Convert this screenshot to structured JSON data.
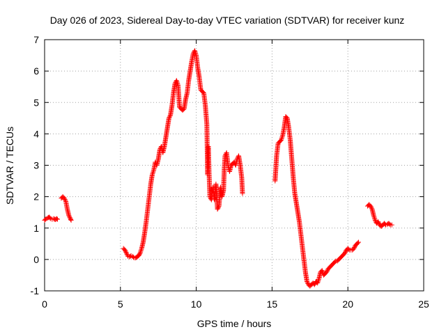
{
  "chart_data": {
    "type": "scatter",
    "title": "Day 026 of 2023, Sidereal Day-to-day VTEC variation (SDTVAR) for receiver kunz",
    "xlabel": "GPS time / hours",
    "ylabel": "SDTVAR / TECUs",
    "xlim": [
      0,
      25
    ],
    "ylim": [
      -1,
      7
    ],
    "xticks": [
      "0",
      "5",
      "10",
      "15",
      "20",
      "25"
    ],
    "yticks": [
      "-1",
      "0",
      "1",
      "2",
      "3",
      "4",
      "5",
      "6",
      "7"
    ],
    "grid": true,
    "marker": "plus",
    "color": "#ff0000",
    "segments": [
      [
        [
          0.0,
          1.25
        ],
        [
          0.1,
          1.3
        ],
        [
          0.2,
          1.32
        ],
        [
          0.3,
          1.35
        ],
        [
          0.4,
          1.3
        ],
        [
          0.5,
          1.28
        ],
        [
          0.6,
          1.3
        ],
        [
          0.7,
          1.27
        ],
        [
          0.8,
          1.3
        ],
        [
          0.85,
          1.28
        ]
      ],
      [
        [
          1.1,
          1.95
        ],
        [
          1.2,
          2.0
        ],
        [
          1.3,
          1.95
        ],
        [
          1.4,
          1.85
        ],
        [
          1.5,
          1.6
        ],
        [
          1.6,
          1.4
        ],
        [
          1.7,
          1.3
        ],
        [
          1.75,
          1.25
        ]
      ],
      [
        [
          5.2,
          0.35
        ],
        [
          5.3,
          0.3
        ],
        [
          5.4,
          0.2
        ],
        [
          5.5,
          0.1
        ],
        [
          5.6,
          0.08
        ],
        [
          5.7,
          0.12
        ],
        [
          5.8,
          0.1
        ],
        [
          5.9,
          0.05
        ],
        [
          6.0,
          0.05
        ],
        [
          6.1,
          0.08
        ],
        [
          6.2,
          0.12
        ],
        [
          6.3,
          0.2
        ],
        [
          6.4,
          0.35
        ],
        [
          6.5,
          0.55
        ],
        [
          6.6,
          0.85
        ],
        [
          6.7,
          1.2
        ],
        [
          6.8,
          1.6
        ],
        [
          6.9,
          2.0
        ],
        [
          7.0,
          2.4
        ],
        [
          7.1,
          2.7
        ],
        [
          7.2,
          2.85
        ],
        [
          7.3,
          3.1
        ],
        [
          7.4,
          3.0
        ],
        [
          7.5,
          3.2
        ],
        [
          7.6,
          3.5
        ],
        [
          7.7,
          3.6
        ],
        [
          7.8,
          3.4
        ],
        [
          7.9,
          3.6
        ],
        [
          8.0,
          3.9
        ],
        [
          8.1,
          4.2
        ],
        [
          8.2,
          4.5
        ],
        [
          8.3,
          4.6
        ],
        [
          8.4,
          4.9
        ],
        [
          8.5,
          5.3
        ],
        [
          8.6,
          5.6
        ],
        [
          8.7,
          5.7
        ],
        [
          8.8,
          5.55
        ],
        [
          8.9,
          4.85
        ],
        [
          9.0,
          4.8
        ],
        [
          9.1,
          4.75
        ],
        [
          9.2,
          4.8
        ],
        [
          9.3,
          5.1
        ],
        [
          9.4,
          5.3
        ],
        [
          9.5,
          5.7
        ],
        [
          9.6,
          6.0
        ],
        [
          9.7,
          6.3
        ],
        [
          9.8,
          6.55
        ],
        [
          9.9,
          6.65
        ],
        [
          10.0,
          6.5
        ],
        [
          10.1,
          6.1
        ],
        [
          10.2,
          5.8
        ],
        [
          10.3,
          5.4
        ],
        [
          10.4,
          5.35
        ],
        [
          10.5,
          5.3
        ],
        [
          10.6,
          4.9
        ],
        [
          10.7,
          4.3
        ],
        [
          10.75,
          2.7
        ],
        [
          10.8,
          3.6
        ],
        [
          10.85,
          2.7
        ],
        [
          10.9,
          2.0
        ],
        [
          11.0,
          1.9
        ],
        [
          11.1,
          2.3
        ],
        [
          11.2,
          1.9
        ],
        [
          11.3,
          2.4
        ],
        [
          11.4,
          1.6
        ],
        [
          11.5,
          1.7
        ],
        [
          11.6,
          2.3
        ],
        [
          11.7,
          2.0
        ],
        [
          11.8,
          2.2
        ],
        [
          11.85,
          2.9
        ],
        [
          11.9,
          3.3
        ],
        [
          12.0,
          3.4
        ],
        [
          12.1,
          3.0
        ],
        [
          12.2,
          2.8
        ],
        [
          12.3,
          3.0
        ],
        [
          12.4,
          3.05
        ],
        [
          12.5,
          3.1
        ],
        [
          12.6,
          3.0
        ],
        [
          12.7,
          3.2
        ],
        [
          12.8,
          3.3
        ],
        [
          12.9,
          3.0
        ],
        [
          13.0,
          2.6
        ],
        [
          13.05,
          2.1
        ]
      ],
      [
        [
          15.2,
          2.5
        ],
        [
          15.3,
          3.3
        ],
        [
          15.4,
          3.7
        ],
        [
          15.5,
          3.75
        ],
        [
          15.6,
          3.8
        ],
        [
          15.7,
          3.95
        ],
        [
          15.8,
          4.2
        ],
        [
          15.9,
          4.55
        ],
        [
          16.0,
          4.5
        ],
        [
          16.1,
          4.2
        ],
        [
          16.2,
          3.8
        ],
        [
          16.3,
          3.2
        ],
        [
          16.4,
          2.6
        ],
        [
          16.5,
          2.1
        ],
        [
          16.6,
          1.8
        ],
        [
          16.7,
          1.5
        ],
        [
          16.8,
          1.2
        ],
        [
          16.9,
          0.8
        ],
        [
          17.0,
          0.4
        ],
        [
          17.1,
          0.0
        ],
        [
          17.2,
          -0.4
        ],
        [
          17.3,
          -0.7
        ],
        [
          17.4,
          -0.8
        ],
        [
          17.5,
          -0.85
        ],
        [
          17.6,
          -0.8
        ],
        [
          17.7,
          -0.75
        ],
        [
          17.8,
          -0.8
        ],
        [
          17.9,
          -0.7
        ],
        [
          18.0,
          -0.75
        ],
        [
          18.1,
          -0.6
        ],
        [
          18.2,
          -0.4
        ],
        [
          18.3,
          -0.35
        ],
        [
          18.4,
          -0.5
        ],
        [
          18.5,
          -0.45
        ],
        [
          18.6,
          -0.4
        ],
        [
          18.7,
          -0.3
        ],
        [
          18.8,
          -0.25
        ],
        [
          18.9,
          -0.2
        ],
        [
          19.0,
          -0.15
        ],
        [
          19.1,
          -0.1
        ],
        [
          19.2,
          -0.05
        ],
        [
          19.3,
          -0.05
        ],
        [
          19.4,
          0.0
        ],
        [
          19.5,
          0.05
        ],
        [
          19.6,
          0.1
        ],
        [
          19.7,
          0.15
        ],
        [
          19.8,
          0.2
        ],
        [
          19.9,
          0.3
        ],
        [
          20.0,
          0.35
        ],
        [
          20.1,
          0.3
        ],
        [
          20.2,
          0.3
        ],
        [
          20.3,
          0.3
        ],
        [
          20.4,
          0.35
        ],
        [
          20.5,
          0.45
        ],
        [
          20.6,
          0.5
        ],
        [
          20.7,
          0.55
        ]
      ],
      [
        [
          21.3,
          1.7
        ],
        [
          21.4,
          1.75
        ],
        [
          21.5,
          1.7
        ],
        [
          21.6,
          1.6
        ],
        [
          21.7,
          1.4
        ],
        [
          21.8,
          1.25
        ],
        [
          21.9,
          1.15
        ],
        [
          22.0,
          1.2
        ],
        [
          22.1,
          1.1
        ],
        [
          22.2,
          1.05
        ],
        [
          22.3,
          1.1
        ],
        [
          22.4,
          1.15
        ],
        [
          22.5,
          1.1
        ],
        [
          22.6,
          1.12
        ],
        [
          22.7,
          1.15
        ],
        [
          22.8,
          1.1
        ],
        [
          22.9,
          1.1
        ]
      ]
    ]
  }
}
